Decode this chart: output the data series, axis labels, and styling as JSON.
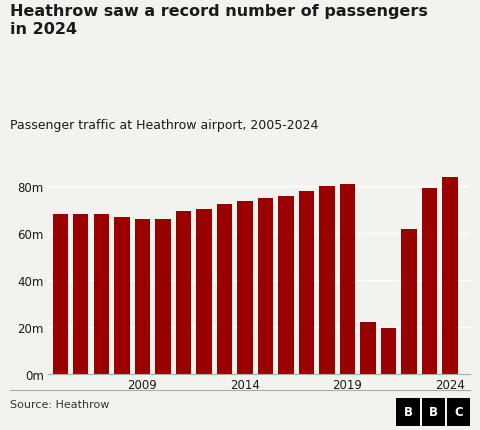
{
  "title_line1": "Heathrow saw a record number of passengers",
  "title_line2": "in 2024",
  "subtitle": "Passenger traffic at Heathrow airport, 2005-2024",
  "source": "Source: Heathrow",
  "years": [
    2005,
    2006,
    2007,
    2008,
    2009,
    2010,
    2011,
    2012,
    2013,
    2014,
    2015,
    2016,
    2017,
    2018,
    2019,
    2020,
    2021,
    2022,
    2023,
    2024
  ],
  "values": [
    67.9,
    67.9,
    68.1,
    66.9,
    66.0,
    65.9,
    69.4,
    70.0,
    72.3,
    73.4,
    74.9,
    75.7,
    78.0,
    80.1,
    80.9,
    22.1,
    19.4,
    61.6,
    79.2,
    83.9
  ],
  "bar_color": "#9B0000",
  "bg_color": "#f2f2ee",
  "text_color": "#1a1a1a",
  "ytick_labels": [
    "0m",
    "20m",
    "40m",
    "60m",
    "80m"
  ],
  "ytick_values": [
    0,
    20,
    40,
    60,
    80
  ],
  "xtick_years": [
    2009,
    2014,
    2019,
    2024
  ],
  "ylim": [
    0,
    88
  ],
  "xlim_left": 2004.4,
  "xlim_right": 2025.0
}
